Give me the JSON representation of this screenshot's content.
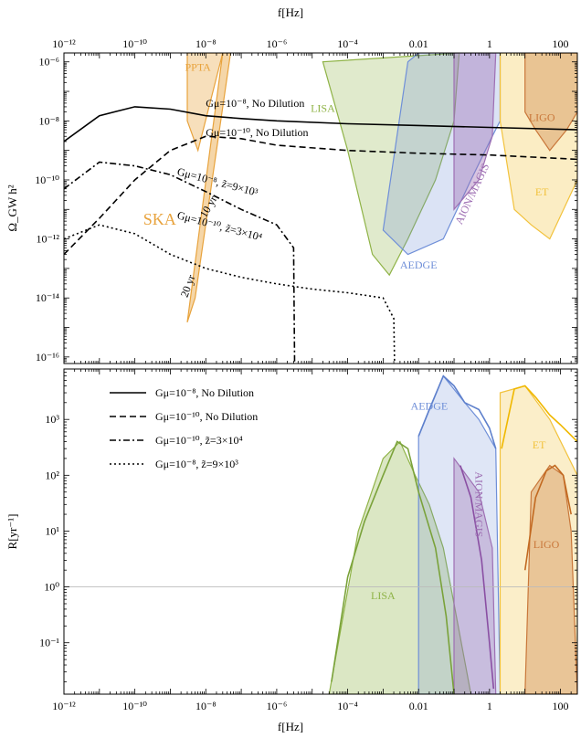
{
  "chart_data": [
    {
      "type": "line",
      "panel": "top",
      "xlabel": "f[Hz]",
      "ylabel": "Ω_GW h²",
      "xscale": "log",
      "yscale": "log",
      "xlim": [
        1e-12,
        300
      ],
      "ylim": [
        6e-17,
        2e-06
      ],
      "x_ticks": [
        {
          "v": 1e-12,
          "label": "10⁻¹²"
        },
        {
          "v": 1e-10,
          "label": "10⁻¹⁰"
        },
        {
          "v": 1e-08,
          "label": "10⁻⁸"
        },
        {
          "v": 1e-06,
          "label": "10⁻⁶"
        },
        {
          "v": 0.0001,
          "label": "10⁻⁴"
        },
        {
          "v": 0.01,
          "label": "0.01"
        },
        {
          "v": 1,
          "label": "1"
        },
        {
          "v": 100,
          "label": "100"
        }
      ],
      "y_ticks": [
        {
          "v": 1e-06,
          "label": "10⁻⁶"
        },
        {
          "v": 1e-08,
          "label": "10⁻⁸"
        },
        {
          "v": 1e-10,
          "label": "10⁻¹⁰"
        },
        {
          "v": 1e-12,
          "label": "10⁻¹²"
        },
        {
          "v": 1e-14,
          "label": "10⁻¹⁴"
        },
        {
          "v": 1e-16,
          "label": "10⁻¹⁶"
        }
      ],
      "regions": [
        {
          "name": "PPTA",
          "color": "#e8a33d",
          "opacity": 0.35,
          "points": [
            [
              3e-09,
              2e-06
            ],
            [
              3e-08,
              2e-06
            ],
            [
              6e-09,
              1e-09
            ],
            [
              3e-09,
              1e-08
            ]
          ]
        },
        {
          "name": "SKA",
          "color": "#e8a33d",
          "opacity": 0.45,
          "points": [
            [
              3e-09,
              1.5e-15
            ],
            [
              3e-08,
              2e-06
            ],
            [
              5e-08,
              2e-06
            ],
            [
              5e-09,
              1e-14
            ]
          ]
        },
        {
          "name": "LISA",
          "color": "#8fb347",
          "opacity": 0.28,
          "points": [
            [
              2e-05,
              1e-06
            ],
            [
              0.0001,
              1e-09
            ],
            [
              0.0005,
              3e-13
            ],
            [
              0.0015,
              6e-14
            ],
            [
              0.005,
              1e-12
            ],
            [
              0.03,
              1e-10
            ],
            [
              0.1,
              1e-08
            ],
            [
              0.14,
              2e-06
            ]
          ]
        },
        {
          "name": "AEDGE",
          "color": "#6f8fd8",
          "opacity": 0.25,
          "points": [
            [
              0.001,
              2e-12
            ],
            [
              0.005,
              3e-13
            ],
            [
              0.05,
              1e-12
            ],
            [
              0.3,
              1e-10
            ],
            [
              1.2,
              3e-09
            ],
            [
              2,
              1e-08
            ],
            [
              2,
              2e-06
            ],
            [
              0.01,
              2e-06
            ],
            [
              0.005,
              1e-06
            ]
          ]
        },
        {
          "name": "AION/MAGIS",
          "color": "#9e6fb3",
          "opacity": 0.4,
          "points": [
            [
              0.1,
              1e-11
            ],
            [
              0.5,
              1e-10
            ],
            [
              1.2,
              3e-09
            ],
            [
              1.5,
              2e-06
            ],
            [
              0.1,
              2e-06
            ]
          ]
        },
        {
          "name": "ET",
          "color": "#f2c23c",
          "opacity": 0.3,
          "points": [
            [
              2,
              1e-08
            ],
            [
              5,
              1e-11
            ],
            [
              15,
              3e-12
            ],
            [
              50,
              1e-12
            ],
            [
              300,
              1e-10
            ],
            [
              300,
              2e-06
            ],
            [
              2,
              2e-06
            ]
          ]
        },
        {
          "name": "LIGO",
          "color": "#c9773a",
          "opacity": 0.35,
          "points": [
            [
              10,
              2e-08
            ],
            [
              20,
              5e-09
            ],
            [
              50,
              1e-09
            ],
            [
              150,
              5e-09
            ],
            [
              300,
              2e-08
            ],
            [
              300,
              2e-06
            ],
            [
              10,
              2e-06
            ]
          ]
        }
      ],
      "series": [
        {
          "name": "Gμ=10⁻⁸, No Dilution",
          "dash": "solid",
          "x": [
            1e-12,
            1e-11,
            1e-10,
            1e-09,
            1e-08,
            1e-07,
            1e-06,
            0.0001,
            0.01,
            1,
            300
          ],
          "y": [
            2e-09,
            1.5e-08,
            3e-08,
            2.5e-08,
            1.5e-08,
            1.2e-08,
            1e-08,
            8e-09,
            7e-09,
            6e-09,
            5e-09
          ]
        },
        {
          "name": "Gμ=10⁻¹⁰, No Dilution",
          "dash": "dashed",
          "x": [
            1e-12,
            1e-11,
            1e-10,
            1e-09,
            1e-08,
            1e-07,
            1e-06,
            0.0001,
            0.01,
            1,
            300
          ],
          "y": [
            3e-13,
            5e-12,
            1e-10,
            1e-09,
            3e-09,
            2.5e-09,
            1.5e-09,
            1e-09,
            8e-10,
            7e-10,
            5e-10
          ]
        },
        {
          "name": "Gμ=10⁻¹⁰, z̃=3×10⁴",
          "dash": "dashdot",
          "x": [
            1e-12,
            1e-11,
            1e-10,
            1e-09,
            1e-08,
            1e-07,
            1e-06,
            3e-06,
            3.2e-06
          ],
          "y": [
            5e-11,
            4e-10,
            3e-10,
            1.5e-10,
            4e-11,
            1e-11,
            3e-12,
            5e-13,
            6e-17
          ]
        },
        {
          "name": "Gμ=10⁻⁸, z̃=9×10³",
          "dash": "dotted",
          "x": [
            1e-12,
            1e-11,
            1e-10,
            1e-09,
            1e-08,
            1e-07,
            1e-06,
            1e-05,
            0.0001,
            0.001,
            0.002,
            0.0021
          ],
          "y": [
            1e-12,
            3e-12,
            1.5e-12,
            3e-13,
            1e-13,
            5e-14,
            3e-14,
            2e-14,
            1.5e-14,
            1e-14,
            2e-15,
            6e-17
          ]
        }
      ],
      "region_labels": [
        {
          "text": "PPTA",
          "x": 6e-09,
          "y": 5e-07,
          "color": "#e8a33d"
        },
        {
          "text": "SKA",
          "x": 5e-10,
          "y": 3e-12,
          "color": "#e8a33d",
          "size": 18
        },
        {
          "text": "LISA",
          "x": 2e-05,
          "y": 2e-08,
          "color": "#8fb347"
        },
        {
          "text": "AEDGE",
          "x": 0.01,
          "y": 1e-13,
          "color": "#6f8fd8"
        },
        {
          "text": "AION/MAGIS",
          "x": 0.4,
          "y": 3e-11,
          "color": "#9e6fb3",
          "rotate": -65
        },
        {
          "text": "LIGO",
          "x": 30,
          "y": 1e-08,
          "color": "#c9773a"
        },
        {
          "text": "ET",
          "x": 30,
          "y": 3e-11,
          "color": "#f2c23c"
        }
      ],
      "curve_labels": [
        {
          "text": "Gμ=10⁻⁸, No Dilution",
          "x": 1e-08,
          "y": 3e-08,
          "rotate": 0
        },
        {
          "text": "Gμ=10⁻¹⁰, No Dilution",
          "x": 1e-08,
          "y": 3e-09,
          "rotate": 0
        },
        {
          "text": "Gμ=10⁻⁸, z̃=9×10³",
          "x": 1.5e-09,
          "y": 1.5e-10,
          "rotate": 15
        },
        {
          "text": "Gμ=10⁻¹⁰, z̃=3×10⁴",
          "x": 1.5e-09,
          "y": 5e-12,
          "rotate": 15
        },
        {
          "text": "10 yr",
          "x": 1e-08,
          "y": 5e-12,
          "rotate": -60
        },
        {
          "text": "20 yr",
          "x": 3e-09,
          "y": 1e-14,
          "rotate": -70
        }
      ]
    },
    {
      "type": "line",
      "panel": "bottom",
      "xlabel": "f[Hz]",
      "ylabel": "R[yr⁻¹]",
      "xscale": "log",
      "yscale": "log",
      "xlim": [
        1e-12,
        300
      ],
      "ylim": [
        0.012,
        8000
      ],
      "x_ticks": [
        {
          "v": 1e-12,
          "label": "10⁻¹²"
        },
        {
          "v": 1e-10,
          "label": "10⁻¹⁰"
        },
        {
          "v": 1e-08,
          "label": "10⁻⁸"
        },
        {
          "v": 1e-06,
          "label": "10⁻⁶"
        },
        {
          "v": 0.0001,
          "label": "10⁻⁴"
        },
        {
          "v": 0.01,
          "label": "0.01"
        },
        {
          "v": 1,
          "label": "1"
        },
        {
          "v": 100,
          "label": "100"
        }
      ],
      "y_ticks": [
        {
          "v": 1000,
          "label": "10³"
        },
        {
          "v": 100,
          "label": "10²"
        },
        {
          "v": 10,
          "label": "10¹"
        },
        {
          "v": 1,
          "label": "10⁰"
        },
        {
          "v": 0.1,
          "label": "10⁻¹"
        }
      ],
      "hline": 1,
      "legend": {
        "position": "top-left",
        "entries": [
          {
            "label": "Gμ=10⁻⁸, No Dilution",
            "dash": "solid"
          },
          {
            "label": "Gμ=10⁻¹⁰, No Dilution",
            "dash": "dashed"
          },
          {
            "label": "Gμ=10⁻¹⁰, z̃=3×10⁴",
            "dash": "dashdot"
          },
          {
            "label": "Gμ=10⁻⁸, z̃=9×10³",
            "dash": "dotted"
          }
        ]
      },
      "regions": [
        {
          "name": "LISA",
          "color": "#8fb347",
          "opacity": 0.32,
          "points": [
            [
              3e-05,
              0.012
            ],
            [
              0.0002,
              10
            ],
            [
              0.001,
              200
            ],
            [
              0.003,
              400
            ],
            [
              0.008,
              100
            ],
            [
              0.02,
              30
            ],
            [
              0.05,
              5
            ],
            [
              0.1,
              0.5
            ],
            [
              0.3,
              0.012
            ]
          ]
        },
        {
          "name": "AEDGE",
          "color": "#6f8fd8",
          "opacity": 0.22,
          "points": [
            [
              0.01,
              0.012
            ],
            [
              0.01,
              500
            ],
            [
              0.05,
              6000
            ],
            [
              0.2,
              2000
            ],
            [
              0.5,
              1000
            ],
            [
              1.5,
              300
            ],
            [
              2,
              0.012
            ]
          ]
        },
        {
          "name": "AION/MAGIS",
          "color": "#9e6fb3",
          "opacity": 0.35,
          "points": [
            [
              0.1,
              0.012
            ],
            [
              0.1,
              200
            ],
            [
              0.5,
              50
            ],
            [
              1.2,
              5
            ],
            [
              1.5,
              0.012
            ]
          ]
        },
        {
          "name": "ET",
          "color": "#f2c23c",
          "opacity": 0.28,
          "points": [
            [
              2,
              0.012
            ],
            [
              2,
              3000
            ],
            [
              10,
              4000
            ],
            [
              50,
              1000
            ],
            [
              300,
              100
            ],
            [
              300,
              0.012
            ]
          ]
        },
        {
          "name": "LIGO",
          "color": "#c9773a",
          "opacity": 0.35,
          "points": [
            [
              10,
              0.012
            ],
            [
              15,
              50
            ],
            [
              50,
              150
            ],
            [
              120,
              100
            ],
            [
              200,
              10
            ],
            [
              300,
              0.012
            ]
          ]
        }
      ],
      "series": [
        {
          "name": "LISA-solid",
          "dash": "solid",
          "color": "#7aa23a",
          "x": [
            3.5e-05,
            0.0001,
            0.0003,
            0.001,
            0.0025,
            0.005,
            0.01,
            0.03,
            0.06,
            0.1
          ],
          "y": [
            0.02,
            1.5,
            15,
            100,
            400,
            300,
            50,
            5,
            0.3,
            0.012
          ]
        },
        {
          "name": "AEDGE-solid",
          "dash": "solid",
          "color": "#5e80cc",
          "x": [
            0.01,
            0.02,
            0.05,
            0.1,
            0.2,
            0.5,
            1,
            1.5
          ],
          "y": [
            500,
            1500,
            6000,
            4000,
            2000,
            1500,
            700,
            300
          ]
        },
        {
          "name": "AION-solid",
          "dash": "solid",
          "color": "#8a4fa3",
          "x": [
            0.15,
            0.3,
            0.6,
            1,
            1.3
          ],
          "y": [
            150,
            40,
            3,
            0.1,
            0.015
          ]
        },
        {
          "name": "ET-solid",
          "dash": "solid",
          "color": "#f0b800",
          "x": [
            2.2,
            5,
            10,
            20,
            50,
            100,
            300
          ],
          "y": [
            300,
            3500,
            4000,
            2500,
            1200,
            800,
            400
          ]
        },
        {
          "name": "LIGO-solid",
          "dash": "solid",
          "color": "#c26920",
          "x": [
            10,
            20,
            40,
            70,
            120,
            200
          ],
          "y": [
            2,
            40,
            120,
            150,
            100,
            20
          ]
        }
      ],
      "region_labels": [
        {
          "text": "AEDGE",
          "x": 0.02,
          "y": 1500,
          "color": "#6f8fd8"
        },
        {
          "text": "ET",
          "x": 25,
          "y": 300,
          "color": "#f2c23c"
        },
        {
          "text": "LISA",
          "x": 0.001,
          "y": 0.6,
          "color": "#8fb347"
        },
        {
          "text": "LIGO",
          "x": 40,
          "y": 5,
          "color": "#c9773a"
        },
        {
          "text": "AION/MAGIS",
          "x": 0.4,
          "y": 30,
          "color": "#9e6fb3",
          "rotate": 90
        }
      ]
    }
  ]
}
